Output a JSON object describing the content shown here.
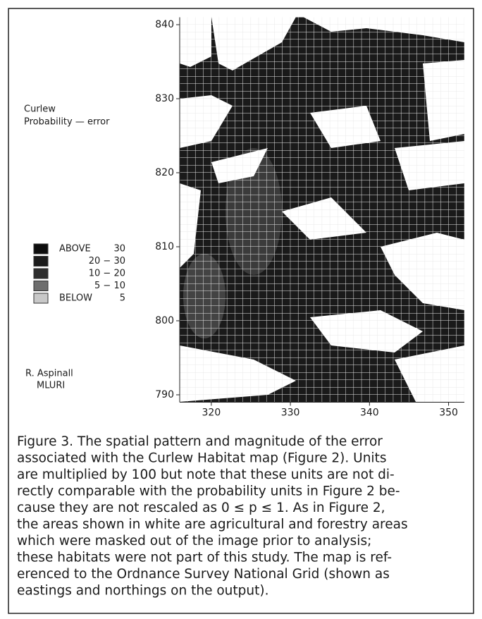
{
  "figure": {
    "side_title": [
      "Curlew",
      "Probability — error"
    ],
    "legend": [
      {
        "left": "ABOVE",
        "right": "30",
        "color": "#0d0d0d"
      },
      {
        "right": "20 − 30",
        "color": "#1c1c1c"
      },
      {
        "right": "10 − 20",
        "color": "#2e2e2e"
      },
      {
        "right": "5 − 10",
        "color": "#6e6e6e"
      },
      {
        "left": "BELOW",
        "right": "5",
        "color": "#c8c8c8"
      }
    ],
    "credit": [
      "R. Aspinall",
      "MLURI"
    ],
    "map": {
      "xlim": [
        316,
        352
      ],
      "ylim": [
        789,
        841
      ],
      "xticks": [
        320,
        330,
        340,
        350
      ],
      "yticks": [
        790,
        800,
        810,
        820,
        830,
        840
      ]
    },
    "caption": [
      "Figure 3. The spatial pattern and magnitude of the error",
      "associated with the Curlew Habitat map (Figure 2). Units",
      "are multiplied by 100 but note that these units are not di-",
      "rectly comparable with the probability units in Figure 2 be-",
      "cause they are not rescaled as 0 ≤ p ≤ 1. As in Figure 2,",
      "the areas shown in white are agricultural and forestry areas",
      "which were masked out of the image prior to analysis;",
      "these habitats were not part of this study. The map is ref-",
      "erenced to the Ordnance Survey National Grid (shown as",
      "eastings and northings on the output)."
    ]
  }
}
